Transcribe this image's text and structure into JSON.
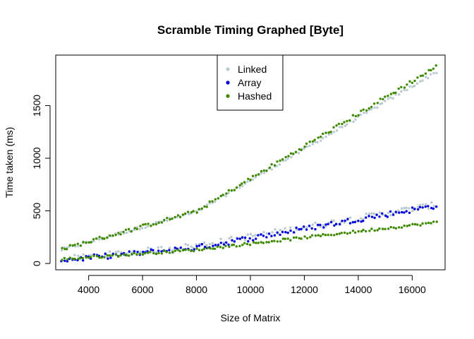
{
  "chart_data": {
    "type": "scatter",
    "title": "Scramble Timing Graphed [Byte]",
    "xlabel": "Size of Matrix",
    "ylabel": "Time taken (ms)",
    "xlim": [
      2780,
      17220
    ],
    "ylim": [
      -60,
      1980
    ],
    "xticks": [
      4000,
      6000,
      8000,
      10000,
      12000,
      14000,
      16000
    ],
    "yticks": [
      0,
      500,
      1000,
      1500
    ],
    "xtick_labels": [
      "4000",
      "6000",
      "8000",
      "10000",
      "12000",
      "14000",
      "16000"
    ],
    "ytick_labels": [
      "0",
      "500",
      "1000",
      "1500"
    ],
    "x_range": [
      3000,
      16900
    ],
    "points_per_series": 140,
    "legend_position": "top-center",
    "series": [
      {
        "name": "Linked",
        "color": "#b7c9d1",
        "groups": [
          {
            "x": [
              3000,
              8000,
              16900
            ],
            "y": [
              130,
              490,
              1820
            ],
            "noise": 14
          },
          {
            "x": [
              3000,
              8000,
              16900
            ],
            "y": [
              40,
              170,
              560
            ],
            "noise": 28
          }
        ]
      },
      {
        "name": "Array",
        "color": "#0000dd",
        "groups": [
          {
            "x": [
              3000,
              8000,
              16900
            ],
            "y": [
              30,
              150,
              550
            ],
            "noise": 26
          }
        ]
      },
      {
        "name": "Hashed",
        "color": "#3f8a00",
        "groups": [
          {
            "x": [
              3000,
              8000,
              16900
            ],
            "y": [
              135,
              495,
              1870
            ],
            "noise": 18
          },
          {
            "x": [
              3000,
              8000,
              16900
            ],
            "y": [
              40,
              130,
              390
            ],
            "noise": 12
          }
        ]
      }
    ]
  }
}
